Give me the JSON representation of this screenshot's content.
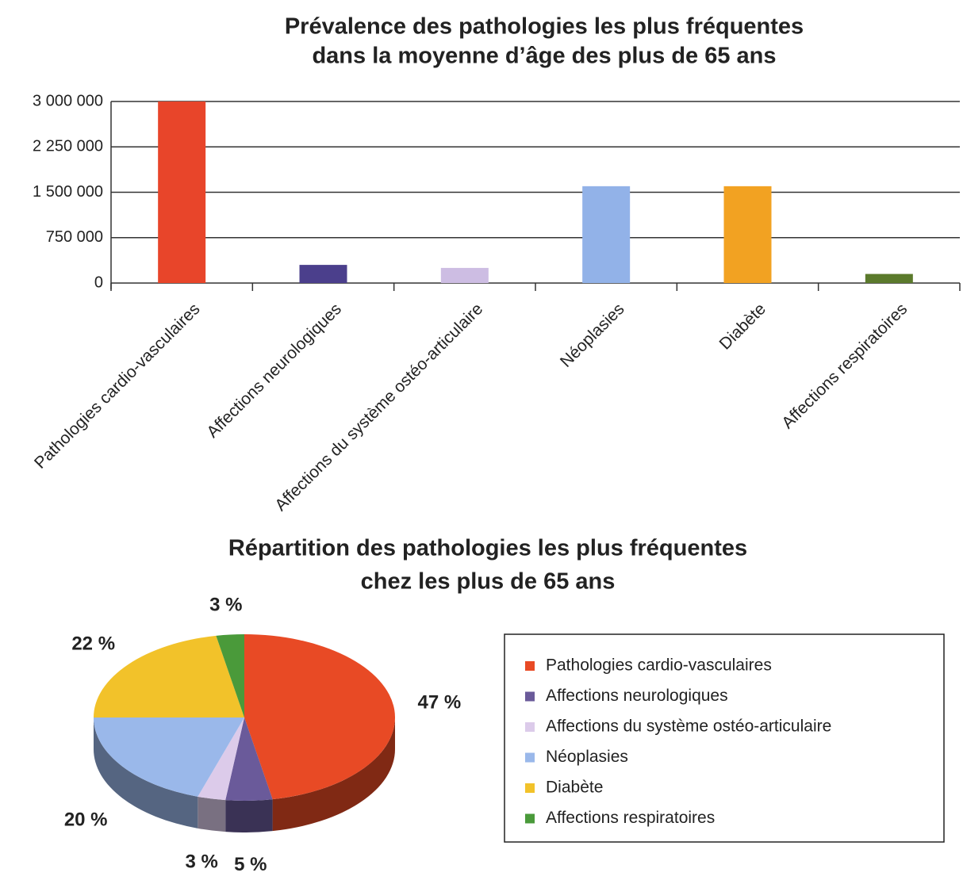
{
  "chart_data": [
    {
      "type": "bar",
      "title": [
        "Prévalence des pathologies les plus fréquentes",
        "dans la moyenne d’âge des plus de 65 ans"
      ],
      "categories": [
        "Pathologies cardio-vasculaires",
        "Affections neurologiques",
        "Affections du système ostéo-articulaire",
        "Néoplasies",
        "Diabète",
        "Affections respiratoires"
      ],
      "values": [
        3000000,
        300000,
        250000,
        1600000,
        1600000,
        150000
      ],
      "colors": [
        "#e8452a",
        "#4b3f8c",
        "#cdbde3",
        "#92b2e8",
        "#f2a222",
        "#5b7a2c"
      ],
      "ylim": [
        0,
        3000000
      ],
      "yticks": [
        0,
        {
          "value": 750000,
          "label": "750 000"
        },
        {
          "value": 1500000,
          "label": "1 500 000"
        },
        {
          "value": 2250000,
          "label": "2 250 000"
        },
        {
          "value": 3000000,
          "label": "3 000 000"
        }
      ],
      "grid": true
    },
    {
      "type": "pie",
      "title": [
        "Répartition des pathologies les plus fréquentes",
        "chez les plus de 65 ans"
      ],
      "categories": [
        "Pathologies cardio-vasculaires",
        "Affections neurologiques",
        "Affections du système ostéo-articulaire",
        "Néoplasies",
        "Diabète",
        "Affections respiratoires"
      ],
      "values": [
        47,
        5,
        3,
        20,
        22,
        3
      ],
      "value_labels": [
        "47 %",
        "5 %",
        "3 %",
        "20 %",
        "22 %",
        "3 %"
      ],
      "colors": [
        "#e84a25",
        "#6a5a9a",
        "#dccbea",
        "#9ab8ea",
        "#f2c22a",
        "#4a9a3a"
      ]
    }
  ]
}
